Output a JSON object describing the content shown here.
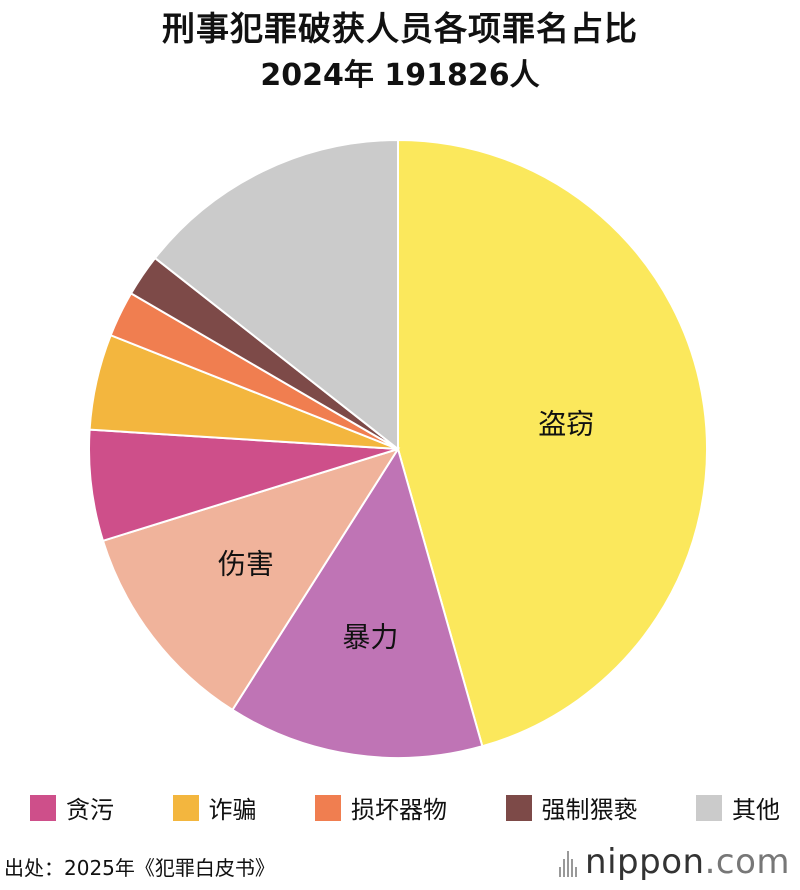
{
  "title": "刑事犯罪破获人员各项罪名占比",
  "subtitle": "2024年 191826人",
  "source": "出处：2025年《犯罪白皮书》",
  "brand": {
    "name": "nippon",
    "suffix": ".com"
  },
  "chart_data": {
    "type": "pie",
    "title": "刑事犯罪破获人员各项罪名占比",
    "subtitle": "2024年 191826人",
    "start_angle_deg": 0,
    "direction": "clockwise",
    "slices": [
      {
        "label": "盗窃",
        "value": 45.6,
        "color": "#FBE85C",
        "slice_label": "盗窃"
      },
      {
        "label": "暴力",
        "value": 13.4,
        "color": "#BF74B5",
        "slice_label": "暴力"
      },
      {
        "label": "伤害",
        "value": 11.2,
        "color": "#F0B39B",
        "slice_label": "伤害"
      },
      {
        "label": "贪污",
        "value": 5.8,
        "color": "#CE4F8A",
        "slice_label": ""
      },
      {
        "label": "诈骗",
        "value": 5.0,
        "color": "#F3B63E",
        "slice_label": ""
      },
      {
        "label": "损坏器物",
        "value": 2.4,
        "color": "#F07E50",
        "slice_label": ""
      },
      {
        "label": "强制猥亵",
        "value": 2.2,
        "color": "#7D4A48",
        "slice_label": ""
      },
      {
        "label": "其他",
        "value": 14.4,
        "color": "#CBCBCB",
        "slice_label": ""
      }
    ],
    "legend": {
      "position": "bottom",
      "entries": [
        {
          "label": "贪污",
          "color": "#CE4F8A"
        },
        {
          "label": "诈骗",
          "color": "#F3B63E"
        },
        {
          "label": "损坏器物",
          "color": "#F07E50"
        },
        {
          "label": "强制猥亵",
          "color": "#7D4A48"
        },
        {
          "label": "其他",
          "color": "#CBCBCB"
        }
      ]
    }
  }
}
